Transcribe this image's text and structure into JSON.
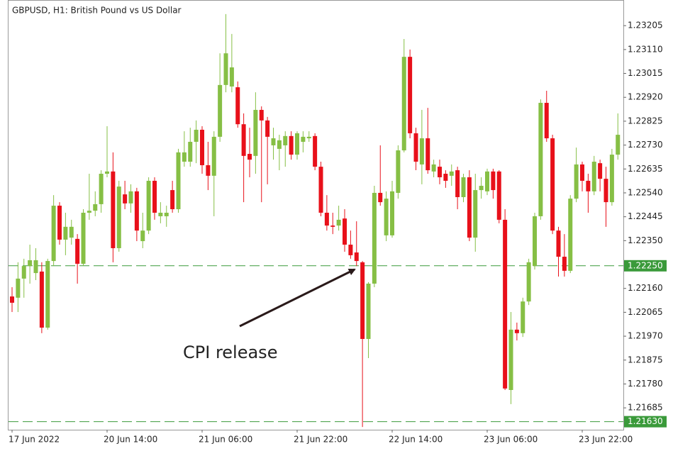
{
  "chart_data": {
    "type": "candlestick",
    "title": "GBPUSD, H1:  British Pound vs US Dollar",
    "annotation": "CPI release",
    "up_color": "#86bf45",
    "down_color": "#e8101a",
    "level_color": "#3a9a3a",
    "categories": [
      "17 Jun 2022",
      null,
      null,
      null,
      null,
      null,
      null,
      null,
      null,
      null,
      null,
      null,
      null,
      null,
      null,
      null,
      "20 Jun 14:00",
      null,
      null,
      null,
      null,
      null,
      null,
      null,
      null,
      null,
      null,
      null,
      null,
      null,
      null,
      null,
      "21 Jun 06:00",
      null,
      null,
      null,
      null,
      null,
      null,
      null,
      null,
      null,
      null,
      null,
      null,
      null,
      null,
      null,
      "21 Jun 22:00",
      null,
      null,
      null,
      null,
      null,
      null,
      null,
      null,
      null,
      null,
      null,
      null,
      null,
      null,
      null,
      "22 Jun 14:00",
      null,
      null,
      null,
      null,
      null,
      null,
      null,
      null,
      null,
      null,
      null,
      null,
      null,
      null,
      null,
      "23 Jun 06:00",
      null,
      null,
      null,
      null,
      null,
      null,
      null,
      null,
      null,
      null,
      null,
      null,
      null,
      null,
      null,
      "23 Jun 22:00",
      null,
      null,
      null,
      null,
      null,
      null
    ],
    "open": [
      1.22128,
      1.22123,
      1.22199,
      1.22249,
      1.22221,
      1.22227,
      1.22004,
      1.22269,
      1.22489,
      1.22354,
      1.22362,
      1.22357,
      1.22258,
      1.22461,
      1.22469,
      1.22495,
      1.22616,
      1.22625,
      1.2232,
      1.22534,
      1.22498,
      1.22546,
      1.22348,
      1.2239,
      1.22588,
      1.22447,
      1.22447,
      1.22551,
      1.22475,
      1.22664,
      1.22664,
      1.22743,
      1.22791,
      1.2265,
      1.22608,
      1.22763,
      1.22969,
      1.22963,
      1.2296,
      1.22813,
      1.22695,
      1.22687,
      1.2287,
      1.22828,
      1.22729,
      1.22715,
      1.22729,
      1.22766,
      1.22692,
      1.22743,
      1.22757,
      1.22766,
      1.22644,
      1.22461,
      1.2241,
      1.2241,
      1.22438,
      1.22334,
      1.22303,
      1.22264,
      1.21959,
      1.22179,
      1.2254,
      1.22371,
      1.22371,
      1.2254,
      1.22709,
      1.23081,
      1.22777,
      1.22653,
      1.22757,
      1.22625,
      1.22644,
      1.22616,
      1.22608,
      1.2263,
      1.22523,
      1.22602,
      1.22362,
      1.22551,
      1.22546,
      1.22625,
      1.22625,
      1.22433,
      1.21756,
      1.21996,
      1.21982,
      1.22108,
      1.22249,
      1.22447,
      1.22898,
      1.22757,
      1.2239,
      1.22286,
      1.2223,
      1.22517,
      1.22653,
      1.22588,
      1.22546,
      1.22658,
      1.22596,
      1.22503,
      1.22692
    ],
    "high": [
      1.22165,
      1.22264,
      1.22278,
      1.22334,
      1.2232,
      1.22264,
      1.22278,
      1.22531,
      1.22503,
      1.22461,
      1.22433,
      1.22376,
      1.22475,
      1.22616,
      1.22546,
      1.2263,
      1.22805,
      1.22701,
      1.22588,
      1.22588,
      1.22574,
      1.2256,
      1.22461,
      1.22602,
      1.22602,
      1.22503,
      1.22489,
      1.22588,
      1.22715,
      1.22785,
      1.22799,
      1.22828,
      1.22805,
      1.22743,
      1.22785,
      1.23095,
      1.23251,
      1.23172,
      1.22983,
      1.22856,
      1.22799,
      1.2294,
      1.22884,
      1.22842,
      1.22799,
      1.22771,
      1.22785,
      1.22785,
      1.22785,
      1.22785,
      1.22785,
      1.22777,
      1.22664,
      1.22531,
      1.22461,
      1.22489,
      1.22475,
      1.2239,
      1.22427,
      1.22269,
      1.22185,
      1.22568,
      1.22729,
      1.22546,
      1.22588,
      1.22729,
      1.23152,
      1.2311,
      1.22799,
      1.2287,
      1.22878,
      1.22672,
      1.22672,
      1.2263,
      1.22653,
      1.22644,
      1.22616,
      1.2263,
      1.22616,
      1.22602,
      1.22636,
      1.22636,
      1.2263,
      1.22475,
      1.22066,
      1.22024,
      1.22123,
      1.22278,
      1.22461,
      1.22912,
      1.22946,
      1.22771,
      1.22405,
      1.22376,
      1.22531,
      1.2272,
      1.22664,
      1.22616,
      1.22687,
      1.22672,
      1.22644,
      1.22715,
      1.22856
    ],
    "low": [
      1.22066,
      1.22066,
      1.22123,
      1.22179,
      1.22193,
      1.21982,
      1.21996,
      1.22249,
      1.22334,
      1.22292,
      1.22334,
      1.22179,
      1.22249,
      1.22433,
      1.22447,
      1.22461,
      1.22602,
      1.22264,
      1.22306,
      1.22475,
      1.22461,
      1.22348,
      1.2232,
      1.22376,
      1.22433,
      1.22419,
      1.22405,
      1.22461,
      1.22461,
      1.22644,
      1.22644,
      1.22658,
      1.22616,
      1.22551,
      1.22447,
      1.22743,
      1.2294,
      1.2294,
      1.22799,
      1.22503,
      1.22602,
      1.22616,
      1.22503,
      1.22574,
      1.22672,
      1.2263,
      1.22644,
      1.22672,
      1.22672,
      1.22701,
      1.22743,
      1.2263,
      1.22447,
      1.2239,
      1.22376,
      1.2239,
      1.22306,
      1.22278,
      1.22249,
      1.21609,
      1.21883,
      1.22165,
      1.22489,
      1.22348,
      1.22362,
      1.22517,
      1.22701,
      1.22757,
      1.2263,
      1.22574,
      1.22616,
      1.22602,
      1.22574,
      1.2256,
      1.22568,
      1.22475,
      1.22503,
      1.22348,
      1.22306,
      1.22517,
      1.22531,
      1.22517,
      1.22419,
      1.21756,
      1.217,
      1.21953,
      1.21967,
      1.22094,
      1.22235,
      1.22433,
      1.22743,
      1.22376,
      1.22207,
      1.22207,
      1.22221,
      1.22503,
      1.22546,
      1.22461,
      1.22531,
      1.22546,
      1.22405,
      1.22489,
      1.22672
    ],
    "close": [
      1.22103,
      1.22199,
      1.22249,
      1.22272,
      1.22272,
      1.22004,
      1.22269,
      1.22489,
      1.22354,
      1.22405,
      1.22405,
      1.22258,
      1.22461,
      1.22469,
      1.22495,
      1.22616,
      1.22625,
      1.2232,
      1.22565,
      1.22498,
      1.22546,
      1.2239,
      1.2239,
      1.22588,
      1.22461,
      1.22461,
      1.22461,
      1.22475,
      1.22701,
      1.22701,
      1.22743,
      1.22791,
      1.2265,
      1.22608,
      1.22763,
      1.22969,
      1.23095,
      1.23039,
      1.22813,
      1.22687,
      1.22672,
      1.2287,
      1.22828,
      1.22763,
      1.22757,
      1.22749,
      1.22766,
      1.22692,
      1.22777,
      1.22763,
      1.22763,
      1.22644,
      1.22461,
      1.2241,
      1.22405,
      1.22433,
      1.22334,
      1.22292,
      1.22269,
      1.21959,
      1.22179,
      1.2254,
      1.22503,
      1.22517,
      1.22546,
      1.22709,
      1.23081,
      1.22777,
      1.22664,
      1.22757,
      1.2263,
      1.22653,
      1.22602,
      1.22588,
      1.22625,
      1.22523,
      1.22602,
      1.22362,
      1.22551,
      1.22568,
      1.22625,
      1.22551,
      1.22433,
      1.21762,
      1.21996,
      1.21982,
      1.22108,
      1.22264,
      1.22447,
      1.22898,
      1.22757,
      1.2239,
      1.22286,
      1.2223,
      1.22517,
      1.22653,
      1.22588,
      1.22546,
      1.22664,
      1.22596,
      1.22503,
      1.22692,
      1.22771
    ],
    "ylim": [
      1.21598,
      1.23307
    ],
    "yticks": [
      1.23205,
      {
        "value": 1.2311,
        "label": "1.23110"
      },
      1.23015,
      {
        "value": 1.2292,
        "label": "1.22920"
      },
      1.22825,
      {
        "value": 1.2273,
        "label": "1.22730"
      },
      1.22635,
      {
        "value": 1.2254,
        "label": "1.22540"
      },
      1.22445,
      {
        "value": 1.2235,
        "label": "1.22350"
      },
      {
        "value": 1.2216,
        "label": "1.22160"
      },
      1.22065,
      {
        "value": 1.2197,
        "label": "1.21970"
      },
      1.21875,
      {
        "value": 1.2178,
        "label": "1.21780"
      },
      1.21685
    ],
    "levels": [
      {
        "value": 1.2225,
        "label": "1.22250"
      },
      {
        "value": 1.2163,
        "label": "1.21630"
      }
    ]
  }
}
